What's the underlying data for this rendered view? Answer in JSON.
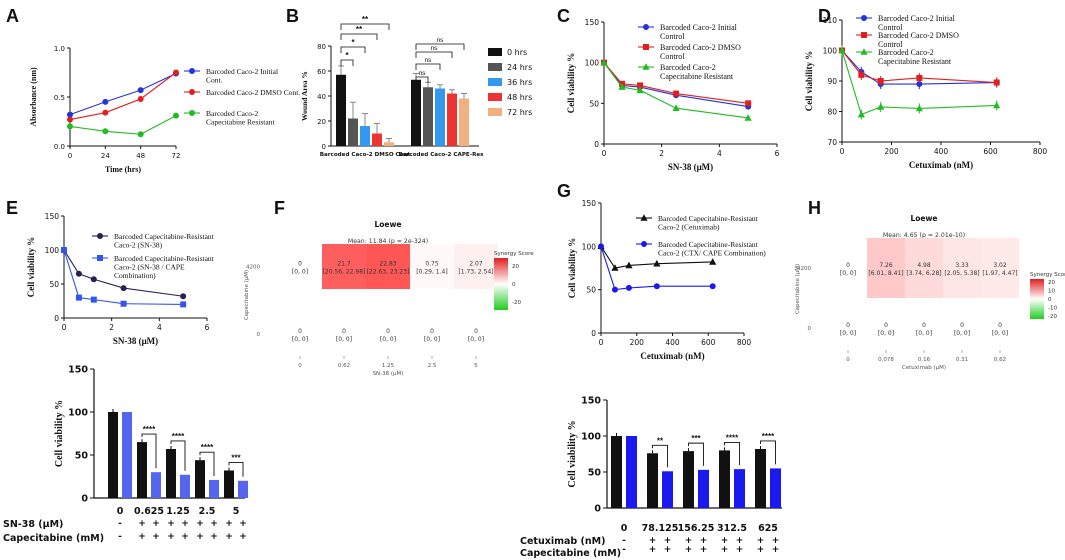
{
  "panel_letters": [
    "A",
    "B",
    "C",
    "D",
    "E",
    "F",
    "G",
    "H"
  ],
  "chart_data": [
    {
      "id": "A",
      "type": "line",
      "xlabel": "Time (hrs)",
      "ylabel": "Absorbance (nm)",
      "x": [
        0,
        24,
        48,
        72
      ],
      "xlim": [
        0,
        72
      ],
      "ylim": [
        0,
        1.0
      ],
      "xticks": [
        "0",
        "24",
        "48",
        "72"
      ],
      "yticks": [
        "0.0",
        "0.5",
        "1.0"
      ],
      "series": [
        {
          "name": "Barcoded Caco-2 Initial Cont.",
          "color": "#2233dd",
          "values": [
            0.32,
            0.45,
            0.57,
            0.74
          ]
        },
        {
          "name": "Barcoded Caco-2 DMSO Cont.",
          "color": "#e02020",
          "values": [
            0.27,
            0.34,
            0.48,
            0.75
          ]
        },
        {
          "name": "Barcoded Caco-2 Capecitabine Resistant",
          "color": "#22bb22",
          "values": [
            0.2,
            0.15,
            0.12,
            0.31
          ]
        }
      ]
    },
    {
      "id": "B",
      "type": "bar",
      "ylabel": "Wound Area %",
      "ylim": [
        0,
        80
      ],
      "yticks": [
        "0",
        "20",
        "40",
        "60",
        "80"
      ],
      "groups": [
        "Barcoded Caco-2 DMSO Cont.",
        "Barcoded Caco-2 CAPE-Res"
      ],
      "series": [
        {
          "name": "0 hrs",
          "color": "#111111",
          "values": [
            57,
            53
          ],
          "errors": [
            7,
            5
          ]
        },
        {
          "name": "24 hrs",
          "color": "#555555",
          "values": [
            22,
            47
          ],
          "errors": [
            13,
            4
          ]
        },
        {
          "name": "36 hrs",
          "color": "#3399ee",
          "values": [
            16,
            46
          ],
          "errors": [
            10,
            3
          ]
        },
        {
          "name": "48 hrs",
          "color": "#ee3333",
          "values": [
            10,
            42
          ],
          "errors": [
            8,
            3
          ]
        },
        {
          "name": "72 hrs",
          "color": "#f0b080",
          "values": [
            3,
            38
          ],
          "errors": [
            3,
            4
          ]
        }
      ],
      "significance": [
        "**",
        "**",
        "*",
        "*",
        "ns",
        "ns",
        "ns",
        "ns"
      ]
    },
    {
      "id": "C",
      "type": "line",
      "xlabel": "SN-38 (μM)",
      "ylabel": "Cell viability %",
      "x": [
        0,
        0.625,
        1.25,
        2.5,
        5
      ],
      "xlim": [
        0,
        6
      ],
      "ylim": [
        0,
        150
      ],
      "xticks": [
        "0",
        "2",
        "4",
        "6"
      ],
      "yticks": [
        "0",
        "50",
        "100",
        "150"
      ],
      "series": [
        {
          "name": "Barcoded Caco-2 Initial Control",
          "color": "#2233dd",
          "marker": "circle",
          "values": [
            100,
            72,
            70,
            60,
            46
          ]
        },
        {
          "name": "Barcoded Caco-2 DMSO Control",
          "color": "#e02020",
          "marker": "square",
          "values": [
            100,
            74,
            72,
            62,
            50
          ]
        },
        {
          "name": "Barcoded Caco-2 Capecitabine Resistant",
          "color": "#22bb22",
          "marker": "triangle",
          "values": [
            100,
            70,
            66,
            44,
            32
          ]
        }
      ]
    },
    {
      "id": "D",
      "type": "line",
      "xlabel": "Cetuximab (nM)",
      "ylabel": "Cell viability %",
      "x": [
        0,
        78.125,
        156.25,
        312.5,
        625
      ],
      "xlim": [
        0,
        800
      ],
      "ylim": [
        70,
        110
      ],
      "xticks": [
        "0",
        "200",
        "400",
        "600",
        "800"
      ],
      "yticks": [
        "70",
        "80",
        "90",
        "100",
        "110"
      ],
      "series": [
        {
          "name": "Barcoded Caco-2 Initial Control",
          "color": "#2233dd",
          "marker": "circle",
          "values": [
            100,
            93,
            89,
            89,
            89.5
          ]
        },
        {
          "name": "Barcoded Caco-2 DMSO Control",
          "color": "#e02020",
          "marker": "square",
          "values": [
            100,
            92,
            90,
            91,
            89.5
          ]
        },
        {
          "name": "Barcoded Caco-2 Capecitabine Resistant",
          "color": "#22bb22",
          "marker": "triangle",
          "values": [
            100,
            79,
            81.5,
            81,
            82
          ]
        }
      ]
    },
    {
      "id": "E",
      "type": "line",
      "xlabel": "SN-38 (μM)",
      "ylabel": "Cell viability %",
      "x": [
        0,
        0.625,
        1.25,
        2.5,
        5
      ],
      "xlim": [
        0,
        6
      ],
      "ylim": [
        0,
        150
      ],
      "xticks": [
        "0",
        "2",
        "4",
        "6"
      ],
      "yticks": [
        "0",
        "50",
        "100",
        "150"
      ],
      "series": [
        {
          "name": "Barcoded Capecitabine-Resistant Caco-2 (SN-38)",
          "color": "#2a1f55",
          "marker": "circle",
          "values": [
            100,
            65,
            57,
            44,
            32
          ]
        },
        {
          "name": "Barcoded Capecitabine-Resistant Caco-2 (SN-38 / CAPE Combination)",
          "color": "#3355ee",
          "marker": "square",
          "values": [
            100,
            30,
            27,
            21,
            20
          ]
        }
      ]
    },
    {
      "id": "E-bar",
      "type": "bar",
      "ylabel": "Cell viability %",
      "ylim": [
        0,
        150
      ],
      "yticks": [
        "0",
        "50",
        "100",
        "150"
      ],
      "categories": [
        "0",
        "0.625",
        "1.25",
        "2.5",
        "5"
      ],
      "row_labels": [
        "SN-38 (μM)",
        "Capecitabine (mM)"
      ],
      "pairs": [
        {
          "black": 100,
          "color": 100,
          "sig": ""
        },
        {
          "black": 65,
          "color": 30,
          "sig": "****"
        },
        {
          "black": 57,
          "color": 27,
          "sig": "****"
        },
        {
          "black": 44,
          "color": 21,
          "sig": "****"
        },
        {
          "black": 32,
          "color": 20,
          "sig": "***"
        }
      ],
      "colors": {
        "black": "#111111",
        "color": "#5566ee"
      },
      "row1_marks": [
        "-",
        "+",
        "+",
        "+",
        "+",
        "+",
        "+",
        "+",
        "+"
      ],
      "row2_marks": [
        "-",
        "+",
        "+",
        "+",
        "+",
        "+",
        "+",
        "+",
        "+"
      ]
    },
    {
      "id": "F",
      "type": "heatmap",
      "title": "Loewe",
      "mean": "Mean: 11.84 (p = 2e-324)",
      "ylabel": "Capecitabine (μM)",
      "xlabel": "SN-38 (μM)",
      "yticks": [
        "4200",
        "0"
      ],
      "xticks": [
        "0",
        "0.62",
        "1.25",
        "2.5",
        "5"
      ],
      "legend_title": "Synergy Score",
      "legend_ticks": [
        "20",
        "0",
        "-20"
      ],
      "cells": [
        [
          {
            "v": "0",
            "ci": "[0, 0]",
            "s": 0
          },
          {
            "v": "21.7",
            "ci": "[20.56, 22.98]",
            "s": 21.7
          },
          {
            "v": "22.83",
            "ci": "[22.63, 23.23]",
            "s": 22.83
          },
          {
            "v": "0.75",
            "ci": "[0.29, 1.4]",
            "s": 0.75
          },
          {
            "v": "2.07",
            "ci": "[1.73, 2.54]",
            "s": 2.07
          }
        ],
        [
          {
            "v": "0",
            "ci": "[0, 0]",
            "s": 0
          },
          {
            "v": "0",
            "ci": "[0, 0]",
            "s": 0
          },
          {
            "v": "0",
            "ci": "[0, 0]",
            "s": 0
          },
          {
            "v": "0",
            "ci": "[0, 0]",
            "s": 0
          },
          {
            "v": "0",
            "ci": "[0, 0]",
            "s": 0
          }
        ]
      ]
    },
    {
      "id": "G",
      "type": "line",
      "xlabel": "Cetuximab (nM)",
      "ylabel": "Cell viability %",
      "x": [
        0,
        78.125,
        156.25,
        312.5,
        625
      ],
      "xlim": [
        0,
        800
      ],
      "ylim": [
        0,
        150
      ],
      "xticks": [
        "0",
        "200",
        "400",
        "600",
        "800"
      ],
      "yticks": [
        "0",
        "50",
        "100",
        "150"
      ],
      "series": [
        {
          "name": "Barcoded Capecitabine-Resistant Caco-2 (Cetuximab)",
          "color": "#111111",
          "marker": "triangle",
          "values": [
            100,
            75,
            78,
            80,
            82
          ]
        },
        {
          "name": "Barcoded Capecitabine-Resistant Caco-2 (CTX/ CAPE Combination)",
          "color": "#1a1aee",
          "marker": "circle",
          "values": [
            100,
            50,
            52,
            54,
            54
          ]
        }
      ]
    },
    {
      "id": "G-bar",
      "type": "bar",
      "ylabel": "Cell viability %",
      "ylim": [
        0,
        150
      ],
      "yticks": [
        "0",
        "50",
        "100",
        "150"
      ],
      "categories": [
        "0",
        "78.125",
        "156.25",
        "312.5",
        "625"
      ],
      "row_labels": [
        "Cetuximab (nM)",
        "Capecitabine (mM)"
      ],
      "pairs": [
        {
          "black": 100,
          "color": 100,
          "sig": ""
        },
        {
          "black": 76,
          "color": 51,
          "sig": "**"
        },
        {
          "black": 79,
          "color": 53,
          "sig": "***"
        },
        {
          "black": 80,
          "color": 54,
          "sig": "****"
        },
        {
          "black": 82,
          "color": 55,
          "sig": "****"
        }
      ],
      "colors": {
        "black": "#111111",
        "color": "#1a1aee"
      },
      "row1_marks": [
        "-",
        "+",
        "+",
        "+",
        "+",
        "+",
        "+",
        "+",
        "+"
      ],
      "row2_marks": [
        "-",
        "+",
        "+",
        "+",
        "+",
        "+",
        "+",
        "+",
        "+"
      ]
    },
    {
      "id": "H",
      "type": "heatmap",
      "title": "Loewe",
      "mean": "Mean: 4.65 (p = 2.01e-10)",
      "ylabel": "Capecitabine (μM)",
      "xlabel": "Cetuximab (μM)",
      "yticks": [
        "4200",
        "0"
      ],
      "xticks": [
        "0",
        "0.078",
        "0.16",
        "0.31",
        "0.62"
      ],
      "legend_title": "Synergy Score",
      "legend_ticks": [
        "20",
        "10",
        "0",
        "-10",
        "-20"
      ],
      "cells": [
        [
          {
            "v": "0",
            "ci": "[0, 0]",
            "s": 0
          },
          {
            "v": "7.26",
            "ci": "[6.01, 8.41]",
            "s": 7.26
          },
          {
            "v": "4.98",
            "ci": "[3.74, 6.28]",
            "s": 4.98
          },
          {
            "v": "3.33",
            "ci": "[2.05, 5.38]",
            "s": 3.33
          },
          {
            "v": "3.02",
            "ci": "[1.97, 4.47]",
            "s": 3.02
          }
        ],
        [
          {
            "v": "0",
            "ci": "[0, 0]",
            "s": 0
          },
          {
            "v": "0",
            "ci": "[0, 0]",
            "s": 0
          },
          {
            "v": "0",
            "ci": "[0, 0]",
            "s": 0
          },
          {
            "v": "0",
            "ci": "[0, 0]",
            "s": 0
          },
          {
            "v": "0",
            "ci": "[0, 0]",
            "s": 0
          }
        ]
      ]
    }
  ]
}
